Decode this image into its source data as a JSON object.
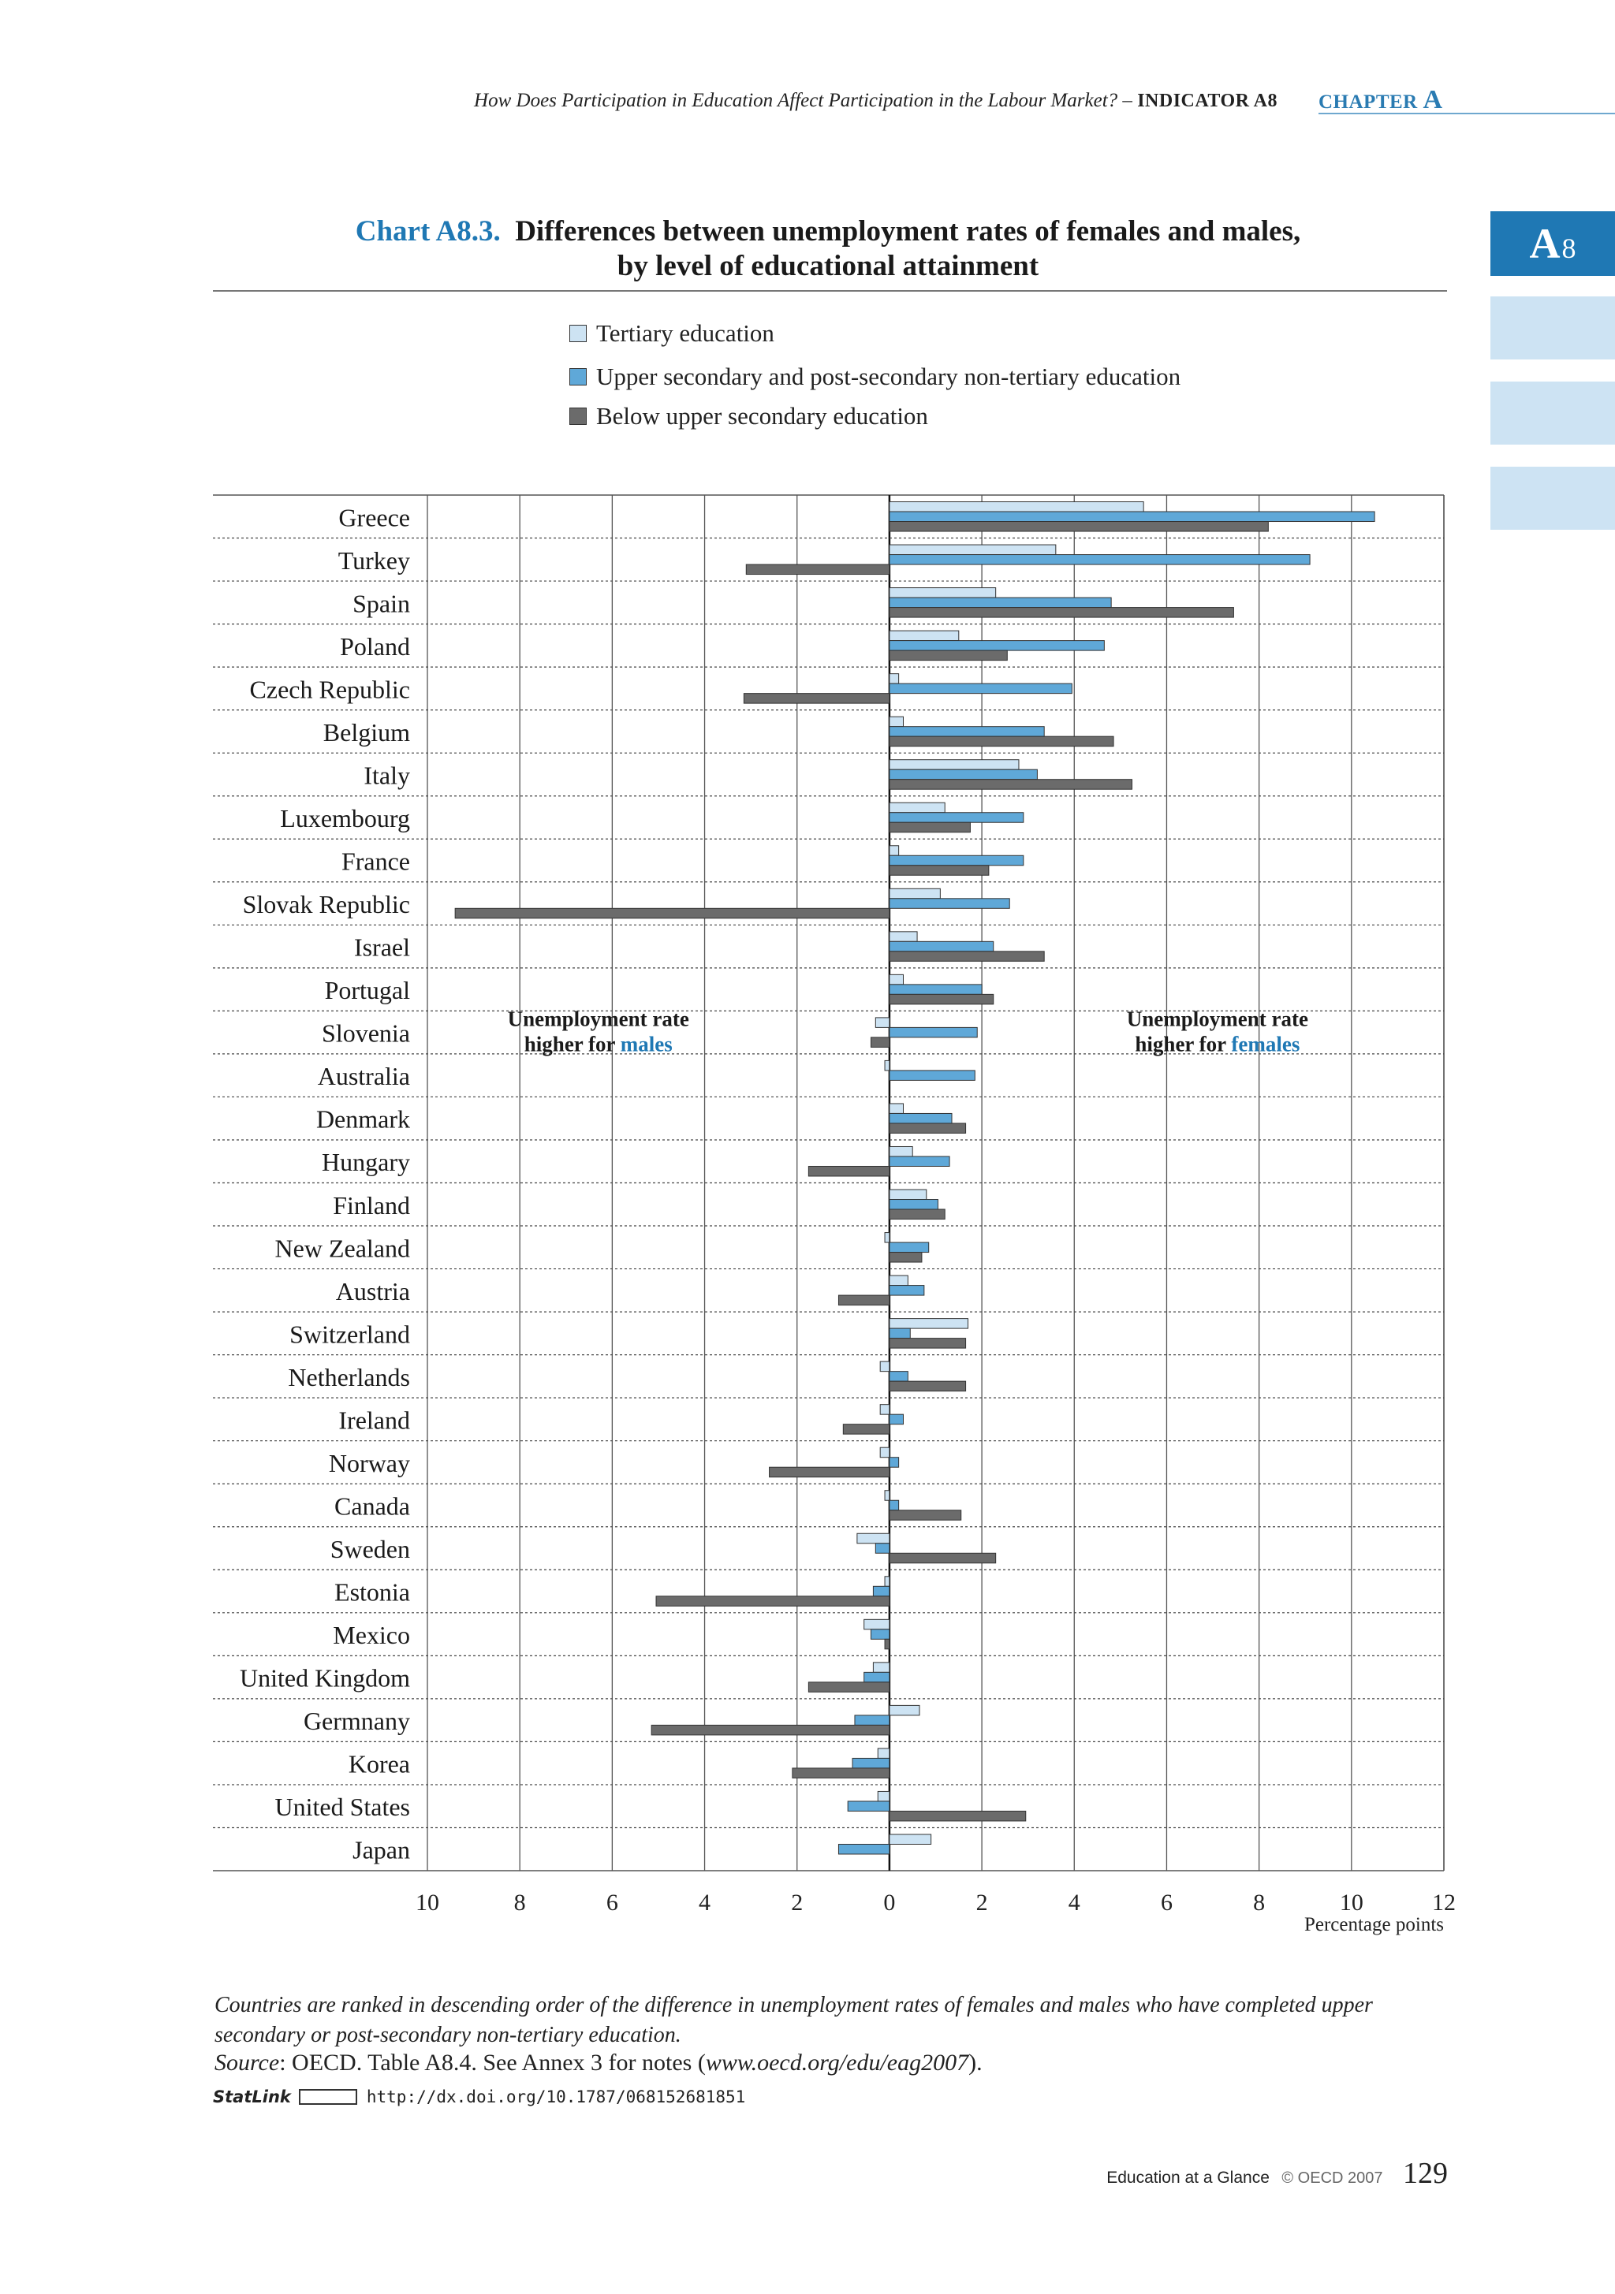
{
  "header": {
    "running_title": "How Does Participation in Education Affect Participation in the Labour Market? –",
    "indicator": "INDICATOR A8",
    "chapter_word": "CHAPTER",
    "chapter_letter": "A"
  },
  "side_tab": {
    "label": "A",
    "sub": "8"
  },
  "chart_title": {
    "prefix": "Chart A8.3.",
    "line1": "Differences between unemployment rates of females and males,",
    "line2": "by level of educational attainment"
  },
  "colors": {
    "tertiary": "#cde3f3",
    "upper_secondary": "#5fa8d8",
    "below_upper": "#6b6b6b",
    "accent": "#1f78b4"
  },
  "chart_data": {
    "type": "bar",
    "orientation": "horizontal",
    "title": "Differences between unemployment rates of females and males, by level of educational attainment",
    "xlabel": "Percentage points",
    "xlim": [
      -10,
      12
    ],
    "xticks": [
      -10,
      -8,
      -6,
      -4,
      -2,
      0,
      2,
      4,
      6,
      8,
      10,
      12
    ],
    "xtick_labels": [
      "10",
      "8",
      "6",
      "4",
      "2",
      "0",
      "2",
      "4",
      "6",
      "8",
      "10",
      "12"
    ],
    "legend_position": "top",
    "categories": [
      "Greece",
      "Turkey",
      "Spain",
      "Poland",
      "Czech Republic",
      "Belgium",
      "Italy",
      "Luxembourg",
      "France",
      "Slovak Republic",
      "Israel",
      "Portugal",
      "Slovenia",
      "Australia",
      "Denmark",
      "Hungary",
      "Finland",
      "New Zealand",
      "Austria",
      "Switzerland",
      "Netherlands",
      "Ireland",
      "Norway",
      "Canada",
      "Sweden",
      "Estonia",
      "Mexico",
      "United Kingdom",
      "Germnany",
      "Korea",
      "United States",
      "Japan"
    ],
    "series": [
      {
        "name": "Tertiary education",
        "values": [
          5.5,
          3.6,
          2.3,
          1.5,
          0.2,
          0.3,
          2.8,
          1.2,
          0.2,
          1.1,
          0.6,
          0.3,
          -0.3,
          -0.1,
          0.3,
          0.5,
          0.8,
          -0.1,
          0.4,
          1.7,
          -0.2,
          -0.2,
          -0.2,
          -0.1,
          -0.7,
          -0.1,
          -0.55,
          -0.35,
          0.65,
          -0.25,
          -0.25,
          0.9
        ]
      },
      {
        "name": "Upper secondary and post-secondary non-tertiary education",
        "values": [
          10.5,
          9.1,
          4.8,
          4.65,
          3.95,
          3.35,
          3.2,
          2.9,
          2.9,
          2.6,
          2.25,
          2.0,
          1.9,
          1.85,
          1.35,
          1.3,
          1.05,
          0.85,
          0.75,
          0.45,
          0.4,
          0.3,
          0.2,
          0.2,
          -0.3,
          -0.35,
          -0.4,
          -0.55,
          -0.75,
          -0.8,
          -0.9,
          -1.1
        ]
      },
      {
        "name": "Below upper secondary education",
        "values": [
          8.2,
          -3.1,
          7.45,
          2.55,
          -3.15,
          4.85,
          5.25,
          1.75,
          2.15,
          -9.4,
          3.35,
          2.25,
          -0.4,
          0.0,
          1.65,
          -1.75,
          1.2,
          0.7,
          -1.1,
          1.65,
          1.65,
          -1.0,
          -2.6,
          1.55,
          2.3,
          -5.05,
          -0.1,
          -1.75,
          -5.15,
          -2.1,
          2.95,
          0.0
        ]
      }
    ],
    "annotations": {
      "left_line1": "Unemployment rate",
      "left_line2_prefix": "higher for",
      "left_line2_highlight": "males",
      "right_line1": "Unemployment rate",
      "right_line2_prefix": "higher for",
      "right_line2_highlight": "females"
    }
  },
  "note": "Countries are ranked in descending order of the difference in unemployment rates of females and males who have completed upper secondary or post-secondary non-tertiary education.",
  "source": {
    "label": "Source",
    "text_before": ": OECD. Table A8.4. See Annex 3 for notes (",
    "url_italic": "www.oecd.org/edu/eag2007",
    "text_after": ")."
  },
  "statlink": {
    "label": "StatLink",
    "url": "http://dx.doi.org/10.1787/068152681851"
  },
  "footer": {
    "book": "Education at a Glance",
    "copyright": "© OECD 2007",
    "page": "129"
  }
}
